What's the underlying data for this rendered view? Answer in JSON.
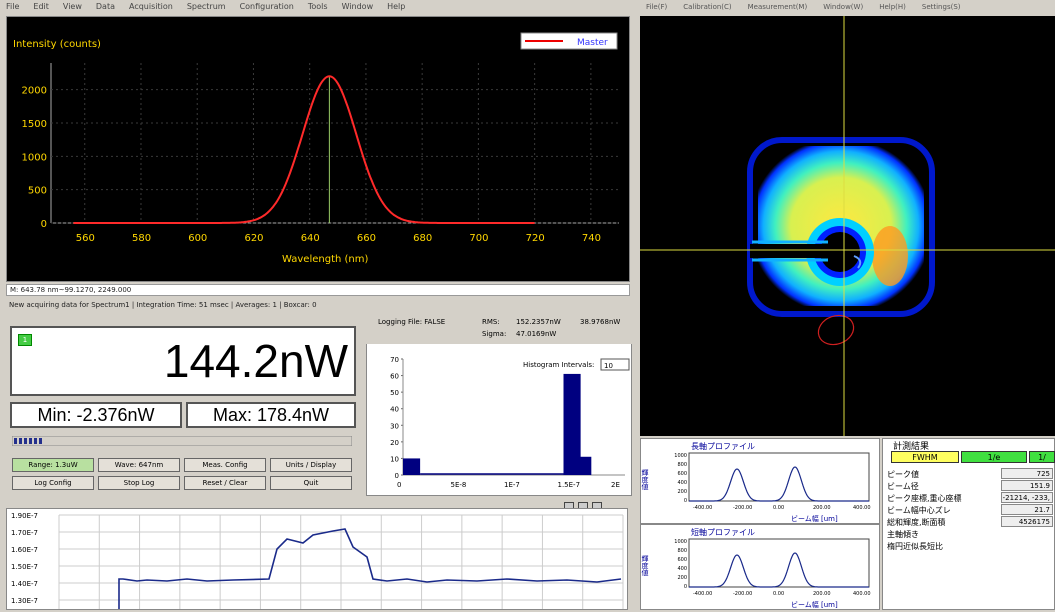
{
  "menu": [
    "File",
    "Edit",
    "View",
    "Data",
    "Acquisition",
    "Spectrum",
    "Configuration",
    "Tools",
    "Window",
    "Help"
  ],
  "spectrum": {
    "ylabel": "Intensity (counts)",
    "xlabel": "Wavelength (nm)",
    "legend": "Master",
    "xticks": [
      "560",
      "580",
      "600",
      "620",
      "640",
      "660",
      "680",
      "700",
      "720",
      "740"
    ],
    "yticks": [
      "0",
      "500",
      "1000",
      "1500",
      "2000"
    ],
    "peak_nm": 647,
    "peak_counts": 2200
  },
  "cursor_readout": "M: 643.78 nm~99.1270, 2249.000",
  "status_line": "New acquiring data for Spectrum1 | Integration Time: 51 msec | Averages: 1 | Boxcar: 0",
  "power": {
    "channel_tag": "1",
    "value": "144.2nW",
    "min_label": "Min:",
    "min_value": "-2.376nW",
    "max_label": "Max:",
    "max_value": "178.4nW"
  },
  "buttons": {
    "range": "Range: 1.3uW",
    "wave": "Wave: 647nm",
    "meas_config": "Meas. Config",
    "units_display": "Units / Display",
    "log_config": "Log Config",
    "stop_log": "Stop Log",
    "reset_clear": "Reset / Clear",
    "quit": "Quit"
  },
  "histogram": {
    "logging_label": "Logging File: FALSE",
    "rms_label": "RMS:",
    "rms_value": "152.2357nW",
    "rms_value2": "38.9768nW",
    "sigma_label": "Sigma:",
    "sigma_value": "47.0169nW",
    "intervals_label": "Histogram Intervals:",
    "intervals_value": "10",
    "yticks": [
      "0",
      "10",
      "20",
      "30",
      "40",
      "50",
      "60",
      "70"
    ],
    "xticks": [
      "0",
      "5E-8",
      "1E-7",
      "1.5E-7",
      "2E"
    ],
    "chart_data": {
      "type": "bar",
      "x": [
        0,
        1.5e-07,
        1.6e-07
      ],
      "values": [
        10,
        61,
        11
      ],
      "ylim": [
        0,
        70
      ],
      "xlim": [
        0,
        2e-07
      ]
    }
  },
  "trend": {
    "yticks": [
      "1.90E-7",
      "1.70E-7",
      "1.60E-7",
      "1.50E-7",
      "1.40E-7",
      "1.30E-7"
    ]
  },
  "beam": {
    "topbar": [
      "File(F)",
      "Calibration(C)",
      "Measurement(M)",
      "Window(W)",
      "Help(H)",
      "Settings(S)"
    ],
    "long_axis_title": "長軸プロファイル",
    "short_axis_title": "短軸プロファイル",
    "profile_ylabel": "輝度値",
    "profile_xlabel": "ビーム幅 [um]",
    "profile_xticks": [
      "-400.00",
      "-200.00",
      "0.00",
      "200.00",
      "400.00"
    ],
    "profile_yticks": [
      "1000",
      "800",
      "600",
      "400",
      "200",
      "0"
    ]
  },
  "results": {
    "title": "計測結果",
    "tab_fwhm": "FWHM",
    "tab_1e": "1/e",
    "tab_1e2": "1/",
    "rows": [
      {
        "label": "ピーク値",
        "value": "725"
      },
      {
        "label": "ビーム径",
        "value": "151.9"
      },
      {
        "label": "ピーク座標,重心座標",
        "value": "-21214, -233,"
      },
      {
        "label": "ビーム幅中心ズレ",
        "value": "21.7"
      },
      {
        "label": "総和輝度,断面積",
        "value": "4526175"
      },
      {
        "label": "主軸傾き",
        "value": ""
      },
      {
        "label": "楕円近似長短比",
        "value": ""
      }
    ]
  }
}
